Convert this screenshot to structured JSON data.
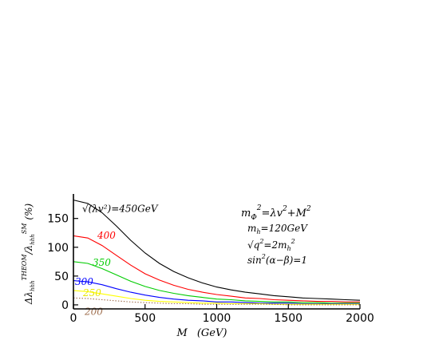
{
  "chart_data": {
    "type": "line",
    "xlabel": "M (GeV)",
    "xlabel_parts": {
      "var": "M",
      "unit": "(GeV)"
    },
    "ylabel": "Δλhhh THEOM / λhhh SM (%)",
    "ylabel_parts": {
      "delta": "Δλ",
      "sub": "hhh",
      "sup1": "THEOM",
      "slash": "/λ",
      "sup2": "SM",
      "unit": "(%)"
    },
    "xlim": [
      0,
      2000
    ],
    "ylim": [
      -7,
      187
    ],
    "x_ticks": [
      0,
      500,
      1000,
      1500,
      2000
    ],
    "y_ticks": [
      0,
      50,
      100,
      150
    ],
    "x_tick_labels": [
      "0",
      "500",
      "1000",
      "1500",
      "2000"
    ],
    "y_tick_labels": [
      "0",
      "50",
      "100",
      "150"
    ],
    "grid": false,
    "legend": "none",
    "x": [
      0,
      100,
      200,
      300,
      400,
      500,
      600,
      700,
      800,
      900,
      1000,
      1100,
      1200,
      1300,
      1400,
      1500,
      1600,
      1700,
      1800,
      1900,
      2000
    ],
    "series": [
      {
        "label": "√(λv²)=450GeV",
        "color": "#000000",
        "style": "solid",
        "values": [
          182,
          176,
          160,
          137,
          112,
          90,
          72,
          58,
          47,
          38,
          31,
          26,
          22,
          19,
          16,
          14,
          12,
          11,
          10,
          9,
          8
        ]
      },
      {
        "label": "400",
        "color": "#ff0000",
        "style": "solid",
        "values": [
          120,
          116,
          103,
          86,
          69,
          54,
          43,
          34,
          27,
          22,
          18,
          15,
          12,
          11,
          9,
          8,
          7,
          6,
          6,
          5,
          5
        ]
      },
      {
        "label": "350",
        "color": "#00cc00",
        "style": "solid",
        "values": [
          75,
          72,
          63,
          52,
          41,
          32,
          25,
          20,
          16,
          13,
          10,
          9,
          7,
          6,
          5,
          5,
          4,
          4,
          3,
          3,
          3
        ]
      },
      {
        "label": "300",
        "color": "#0000ff",
        "style": "solid",
        "values": [
          42,
          40,
          35,
          28,
          22,
          17,
          13,
          10,
          8,
          7,
          5,
          5,
          4,
          3,
          3,
          3,
          2,
          2,
          2,
          2,
          2
        ]
      },
      {
        "label": "250",
        "color": "#ffff00",
        "style": "solid",
        "values": [
          25,
          23,
          19,
          15,
          11,
          8,
          6,
          5,
          4,
          3,
          3,
          2,
          2,
          2,
          1,
          1,
          1,
          1,
          1,
          1,
          1
        ]
      },
      {
        "label": "200",
        "color": "#a07050",
        "style": "dotted",
        "values": [
          12,
          11,
          9,
          7,
          5,
          4,
          3,
          2,
          2,
          1,
          1,
          1,
          1,
          1,
          1,
          0,
          0,
          0,
          0,
          0,
          0
        ]
      }
    ],
    "annotations": {
      "formula": "m_Φ² = λv² + M²",
      "mh": "m_h = 120GeV",
      "q": "√q² = 2m_h²",
      "sin": "sin²(α−β) = 1"
    },
    "annotation_parts": {
      "formula": {
        "m": "m",
        "sub": "Φ",
        "sup": "2",
        "rest": "=λv",
        "sup2": "2",
        "rest2": "+M",
        "sup3": "2"
      },
      "mh": {
        "m": "m",
        "sub": "h",
        "rest": "=120GeV"
      },
      "q": {
        "root": "√q",
        "sup": "2",
        "rest": "=2m",
        "sub": "h",
        "sup2": "2"
      },
      "sin": {
        "s": "sin",
        "sup": "2",
        "rest": "(α−β)=1"
      }
    }
  }
}
